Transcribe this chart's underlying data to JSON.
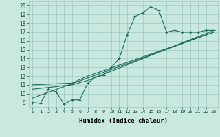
{
  "xlabel": "Humidex (Indice chaleur)",
  "bg_color": "#c8e8e0",
  "grid_color": "#a0c8c0",
  "line_color": "#1a6b5a",
  "xlim": [
    -0.5,
    23.5
  ],
  "ylim": [
    8.5,
    20.5
  ],
  "yticks": [
    9,
    10,
    11,
    12,
    13,
    14,
    15,
    16,
    17,
    18,
    19,
    20
  ],
  "xticks": [
    0,
    1,
    2,
    3,
    4,
    5,
    6,
    7,
    8,
    9,
    10,
    11,
    12,
    13,
    14,
    15,
    16,
    17,
    18,
    19,
    20,
    21,
    22,
    23
  ],
  "line1_x": [
    0,
    1,
    2,
    3,
    4,
    5,
    6,
    7,
    8,
    9,
    10,
    11,
    12,
    13,
    14,
    15,
    16,
    17,
    18,
    19,
    20,
    21,
    22,
    23
  ],
  "line1_y": [
    9.0,
    8.9,
    10.5,
    10.2,
    8.8,
    9.3,
    9.3,
    11.2,
    11.9,
    12.1,
    13.0,
    14.0,
    16.7,
    18.8,
    19.2,
    19.9,
    19.5,
    17.0,
    17.2,
    17.0,
    17.0,
    17.0,
    17.2,
    17.2
  ],
  "line2_x": [
    0,
    5,
    7,
    23
  ],
  "line2_y": [
    10.5,
    11.0,
    11.5,
    17.2
  ],
  "line3_x": [
    0,
    5,
    7,
    23
  ],
  "line3_y": [
    11.0,
    11.2,
    12.0,
    17.0
  ],
  "line4_x": [
    0,
    23
  ],
  "line4_y": [
    9.5,
    17.0
  ]
}
